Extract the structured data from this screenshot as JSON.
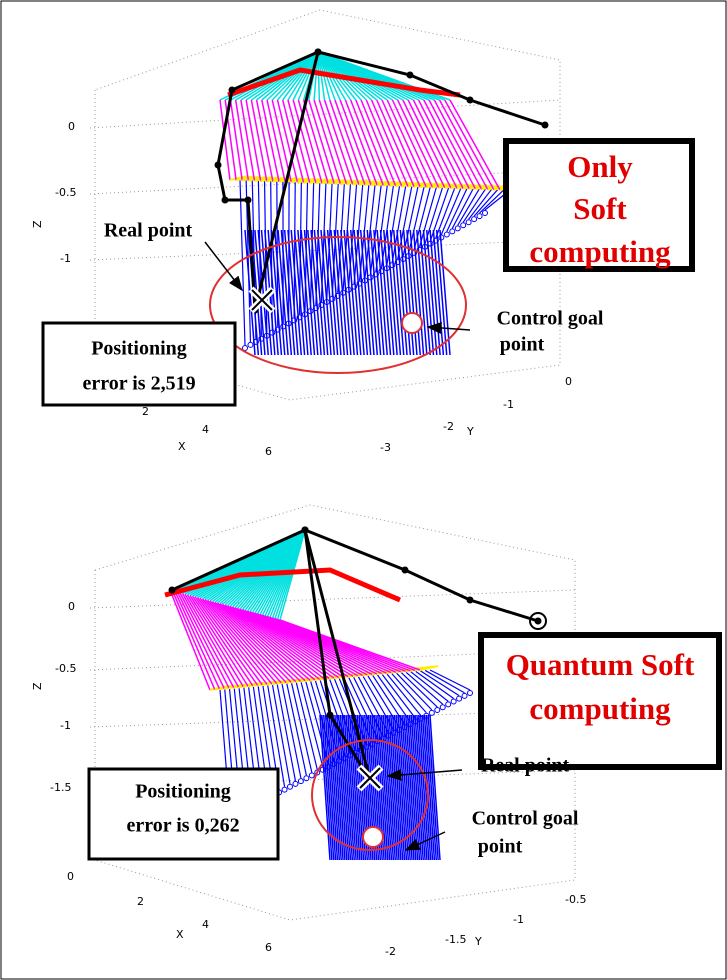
{
  "panels": [
    {
      "title": [
        "Only",
        "Soft",
        "computing"
      ],
      "real_point": "Real point",
      "goal": [
        "Control goal",
        "point"
      ],
      "error": [
        "Positioning",
        "error is 2,519"
      ],
      "z_label": "Z",
      "z_ticks": [
        "0",
        "-0.5",
        "-1"
      ],
      "x_label": "X",
      "x_ticks": [
        "2",
        "4",
        "6"
      ],
      "y_label": "Y",
      "y_ticks": [
        "0",
        "-1",
        "-2",
        "-3"
      ]
    },
    {
      "title": [
        "Quantum Soft",
        "computing"
      ],
      "real_point": "Real point",
      "goal": [
        "Control goal",
        "point"
      ],
      "error": [
        "Positioning",
        "error is 0,262"
      ],
      "z_label": "Z",
      "z_ticks": [
        "0",
        "-0.5",
        "-1",
        "-1.5"
      ],
      "x_label": "X",
      "x_ticks": [
        "0",
        "2",
        "4",
        "6"
      ],
      "y_label": "Y",
      "y_ticks": [
        "-0.5",
        "-1",
        "-1.5",
        "-2"
      ]
    }
  ]
}
